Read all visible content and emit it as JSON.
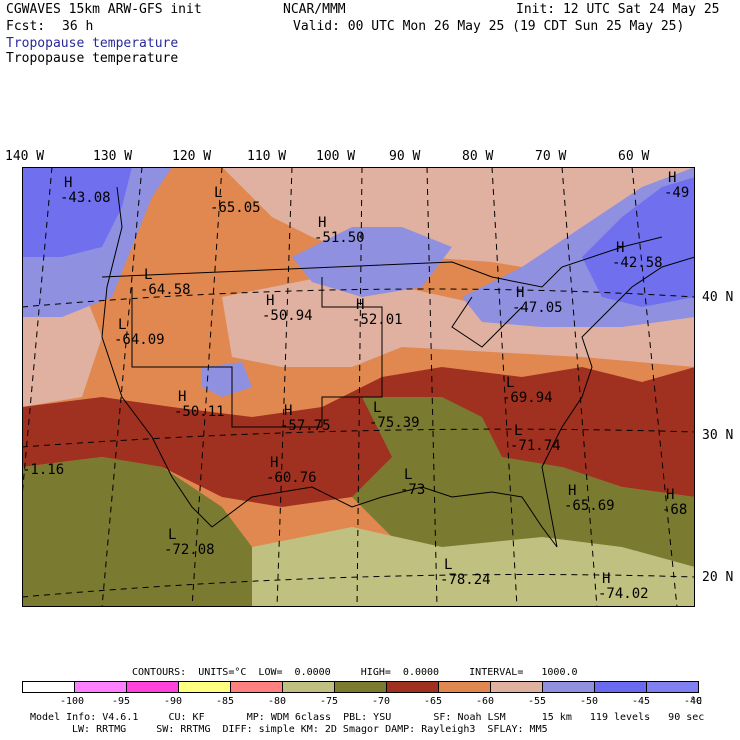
{
  "header": {
    "model_title": "CGWAVES 15km ARW-GFS init",
    "org": "NCAR/MMM",
    "init": "Init: 12 UTC Sat 24 May 25",
    "fcst_label": "Fcst:",
    "fcst_value": "36 h",
    "valid": "Valid: 00 UTC Mon 26 May 25 (19 CDT Sun 25 May 25)",
    "field_title_1": "Tropopause temperature",
    "field_title_2": "Tropopause temperature"
  },
  "axes": {
    "longitudes": [
      "140 W",
      "130 W",
      "120 W",
      "110 W",
      "100 W",
      "90 W",
      "80 W",
      "70 W",
      "60 W"
    ],
    "latitudes": [
      "40 N",
      "30 N",
      "20 N"
    ]
  },
  "map_labels": [
    {
      "letter": "H",
      "value": "-43.08"
    },
    {
      "letter": "L",
      "value": "-65.05"
    },
    {
      "letter": "H",
      "value": "-51.50"
    },
    {
      "letter": "H",
      "value": "-49"
    },
    {
      "letter": "L",
      "value": "-64.58"
    },
    {
      "letter": "H",
      "value": "-42.58"
    },
    {
      "letter": "L",
      "value": "-64.09"
    },
    {
      "letter": "H",
      "value": "-50.94"
    },
    {
      "letter": "H",
      "value": "-52.01"
    },
    {
      "letter": "H",
      "value": "-47.05"
    },
    {
      "letter": "H",
      "value": "-50.11"
    },
    {
      "letter": "H",
      "value": "-57.75"
    },
    {
      "letter": "L",
      "value": "-75.39"
    },
    {
      "letter": "L",
      "value": "-69.94"
    },
    {
      "letter": "L",
      "value": "-71.74"
    },
    {
      "letter": "",
      "value": "-1.16"
    },
    {
      "letter": "H",
      "value": "-60.76"
    },
    {
      "letter": "L",
      "value": "-73"
    },
    {
      "letter": "H",
      "value": "-65.69"
    },
    {
      "letter": "H",
      "value": "-68"
    },
    {
      "letter": "L",
      "value": "-72.08"
    },
    {
      "letter": "L",
      "value": "-78.24"
    },
    {
      "letter": "H",
      "value": "-74.02"
    }
  ],
  "contours": {
    "text": "CONTOURS:  UNITS=°C  LOW=  0.0000     HIGH=  0.0000     INTERVAL=   1000.0"
  },
  "colorbar": {
    "colors": [
      "#ffffff",
      "#ff80ff",
      "#ff44dd",
      "#ffff80",
      "#ff8080",
      "#c0c080",
      "#7a7a30",
      "#a03020",
      "#e08850",
      "#e0b0a0",
      "#9090e0",
      "#6a6af0",
      "#8080f0"
    ],
    "ticks": [
      "-100",
      "-95",
      "-90",
      "-85",
      "-80",
      "-75",
      "-70",
      "-65",
      "-60",
      "-55",
      "-50",
      "-45",
      "-40"
    ],
    "unit": "°C"
  },
  "model_info": {
    "line1": "Model Info: V4.6.1     CU: KF       MP: WDM 6class  PBL: YSU       SF: Noah LSM      15 km   119 levels   90 sec",
    "line2": "LW: RRTMG     SW: RRTMG  DIFF: simple KM: 2D Smagor DAMP: Rayleigh3  SFLAY: MM5"
  }
}
